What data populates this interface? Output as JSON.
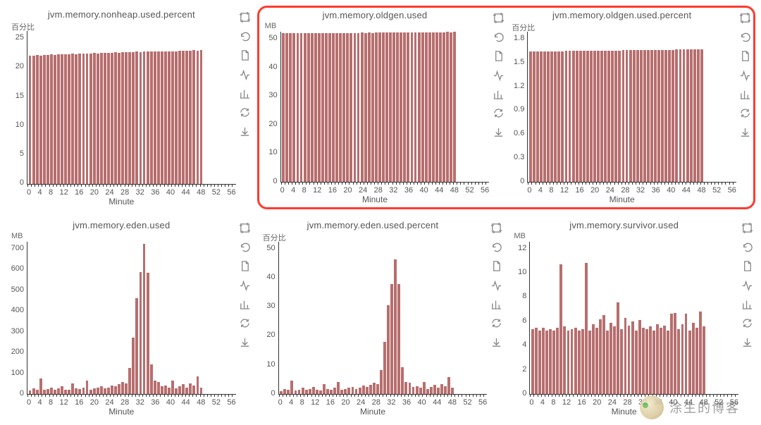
{
  "global": {
    "bar_color": "#b76e6e",
    "axis_color": "#333333",
    "text_color": "#555555",
    "background_color": "#ffffff",
    "highlight_border_color": "#ff3b30",
    "font_family": "-apple-system, Helvetica Neue, Arial",
    "title_fontsize": 13,
    "tick_fontsize": 11,
    "xlabel_fontsize": 12
  },
  "xaxis_common": {
    "label": "Minute",
    "tick_labels": [
      "0",
      "4",
      "8",
      "12",
      "16",
      "20",
      "24",
      "28",
      "32",
      "36",
      "40",
      "44",
      "48",
      "52",
      "56"
    ],
    "bar_count": 49,
    "xlim": [
      0,
      58
    ]
  },
  "toolbar_icons": [
    "crop-icon",
    "undo-icon",
    "document-icon",
    "activity-icon",
    "barchart-icon",
    "refresh-icon",
    "download-icon"
  ],
  "charts": [
    {
      "id": "nonheap",
      "title": "jvm.memory.nonheap.used.percent",
      "ylabel": "百分比",
      "ylim": [
        0,
        25
      ],
      "ytick_labels": [
        "25",
        "20",
        "15",
        "10",
        "5",
        "0"
      ],
      "type": "bar",
      "values": [
        21.0,
        21.0,
        21.1,
        21.0,
        21.1,
        21.1,
        21.2,
        21.1,
        21.2,
        21.2,
        21.2,
        21.2,
        21.3,
        21.2,
        21.3,
        21.3,
        21.3,
        21.3,
        21.4,
        21.3,
        21.4,
        21.4,
        21.4,
        21.4,
        21.5,
        21.4,
        21.5,
        21.5,
        21.5,
        21.5,
        21.6,
        21.5,
        21.6,
        21.6,
        21.6,
        21.6,
        21.7,
        21.6,
        21.7,
        21.7,
        21.7,
        21.7,
        21.8,
        21.8,
        21.8,
        21.8,
        21.9,
        21.8,
        21.9
      ]
    },
    {
      "id": "oldgen",
      "title": "jvm.memory.oldgen.used",
      "ylabel": "MB",
      "ylim": [
        0,
        50
      ],
      "ytick_labels": [
        "50",
        "40",
        "30",
        "20",
        "10",
        "0"
      ],
      "type": "bar",
      "highlighted": true,
      "values": [
        49.5,
        49.5,
        49.5,
        49.6,
        49.5,
        49.6,
        49.5,
        49.6,
        49.5,
        49.6,
        49.6,
        49.6,
        49.5,
        49.6,
        49.6,
        49.6,
        49.6,
        49.6,
        49.6,
        49.6,
        49.6,
        49.6,
        49.7,
        49.6,
        49.7,
        49.6,
        49.7,
        49.7,
        49.7,
        49.7,
        49.7,
        49.7,
        49.7,
        49.7,
        49.8,
        49.7,
        49.8,
        49.7,
        49.8,
        49.8,
        49.8,
        49.8,
        49.8,
        49.8,
        49.8,
        49.8,
        49.9,
        49.8,
        49.9
      ]
    },
    {
      "id": "oldgen_pct",
      "title": "jvm.memory.oldgen.used.percent",
      "ylabel": "百分比",
      "ylim": [
        0,
        1.8
      ],
      "ytick_labels": [
        "1.8",
        "1.5",
        "1.2",
        "0.9",
        "0.6",
        "0.3",
        "0"
      ],
      "type": "bar",
      "highlighted": true,
      "values": [
        1.56,
        1.56,
        1.56,
        1.56,
        1.56,
        1.56,
        1.56,
        1.56,
        1.56,
        1.56,
        1.57,
        1.57,
        1.57,
        1.57,
        1.57,
        1.57,
        1.57,
        1.57,
        1.57,
        1.57,
        1.57,
        1.57,
        1.57,
        1.57,
        1.57,
        1.57,
        1.58,
        1.58,
        1.58,
        1.58,
        1.58,
        1.58,
        1.58,
        1.58,
        1.58,
        1.58,
        1.58,
        1.58,
        1.58,
        1.58,
        1.58,
        1.59,
        1.59,
        1.59,
        1.59,
        1.59,
        1.59,
        1.59,
        1.59
      ]
    },
    {
      "id": "eden",
      "title": "jvm.memory.eden.used",
      "ylabel": "MB",
      "ylim": [
        0,
        700
      ],
      "ytick_labels": [
        "700",
        "600",
        "500",
        "400",
        "300",
        "200",
        "100",
        "0"
      ],
      "type": "bar",
      "values": [
        15,
        25,
        20,
        70,
        18,
        22,
        30,
        20,
        25,
        35,
        20,
        18,
        50,
        25,
        22,
        30,
        60,
        20,
        25,
        30,
        35,
        25,
        30,
        40,
        35,
        45,
        55,
        50,
        120,
        260,
        440,
        560,
        690,
        555,
        135,
        60,
        55,
        35,
        40,
        30,
        60,
        25,
        35,
        45,
        30,
        50,
        40,
        80,
        30
      ]
    },
    {
      "id": "eden_pct",
      "title": "jvm.memory.eden.used.percent",
      "ylabel": "百分比",
      "ylim": [
        0,
        50
      ],
      "ytick_labels": [
        "50",
        "40",
        "30",
        "20",
        "10",
        "0"
      ],
      "type": "bar",
      "values": [
        1.0,
        1.7,
        1.3,
        4.5,
        1.2,
        1.5,
        2.0,
        1.3,
        1.7,
        2.3,
        1.3,
        1.2,
        3.3,
        1.7,
        1.5,
        2.0,
        4.0,
        1.3,
        1.7,
        2.0,
        2.3,
        1.7,
        2.0,
        2.7,
        2.3,
        3.0,
        3.6,
        3.3,
        7.9,
        17.0,
        29.0,
        36.0,
        44.0,
        36.0,
        8.8,
        4.0,
        3.6,
        2.3,
        2.6,
        2.0,
        4.0,
        1.7,
        2.3,
        3.0,
        2.0,
        3.3,
        2.6,
        5.5,
        2.0
      ]
    },
    {
      "id": "survivor",
      "title": "jvm.memory.survivor.used",
      "ylabel": "MB",
      "ylim": [
        0,
        12
      ],
      "ytick_labels": [
        "12",
        "10",
        "8",
        "6",
        "4",
        "2",
        "0"
      ],
      "type": "bar",
      "values": [
        5.1,
        5.2,
        5.0,
        5.2,
        5.0,
        5.1,
        5.0,
        5.2,
        10.2,
        5.3,
        5.0,
        5.1,
        5.2,
        5.0,
        5.1,
        10.3,
        5.0,
        5.5,
        5.2,
        5.9,
        6.2,
        5.0,
        5.6,
        5.3,
        7.2,
        5.1,
        6.0,
        5.4,
        5.7,
        5.0,
        5.8,
        5.2,
        5.1,
        5.3,
        5.0,
        5.5,
        5.2,
        5.4,
        5.0,
        6.3,
        6.4,
        5.1,
        5.5,
        6.3,
        5.0,
        5.6,
        5.2,
        6.5,
        5.3
      ]
    }
  ],
  "watermark": {
    "text": "涂生的博客",
    "text_color": "rgba(80,80,80,0.55)",
    "fontsize": 18
  }
}
